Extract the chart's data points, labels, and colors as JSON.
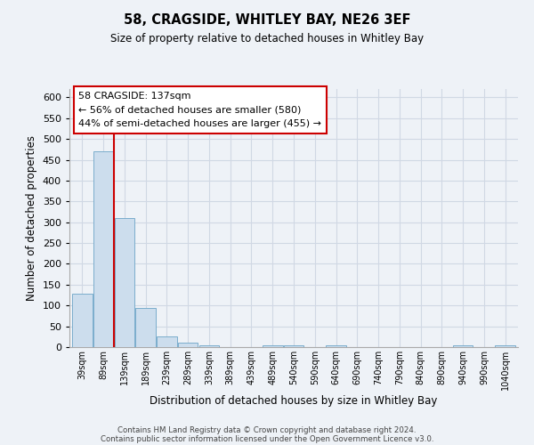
{
  "title": "58, CRAGSIDE, WHITLEY BAY, NE26 3EF",
  "subtitle": "Size of property relative to detached houses in Whitley Bay",
  "xlabel": "Distribution of detached houses by size in Whitley Bay",
  "ylabel": "Number of detached properties",
  "footer_line1": "Contains HM Land Registry data © Crown copyright and database right 2024.",
  "footer_line2": "Contains public sector information licensed under the Open Government Licence v3.0.",
  "bin_labels": [
    "39sqm",
    "89sqm",
    "139sqm",
    "189sqm",
    "239sqm",
    "289sqm",
    "339sqm",
    "389sqm",
    "439sqm",
    "489sqm",
    "540sqm",
    "590sqm",
    "640sqm",
    "690sqm",
    "740sqm",
    "790sqm",
    "840sqm",
    "890sqm",
    "940sqm",
    "990sqm",
    "1040sqm"
  ],
  "bar_values": [
    128,
    470,
    310,
    95,
    26,
    10,
    4,
    0,
    0,
    5,
    5,
    0,
    4,
    0,
    0,
    0,
    0,
    0,
    4,
    0,
    4
  ],
  "bar_color": "#ccdded",
  "bar_edgecolor": "#7aadcc",
  "ylim": [
    0,
    620
  ],
  "yticks": [
    0,
    50,
    100,
    150,
    200,
    250,
    300,
    350,
    400,
    450,
    500,
    550,
    600
  ],
  "vline_color": "#cc0000",
  "annotation_title": "58 CRAGSIDE: 137sqm",
  "annotation_line1": "← 56% of detached houses are smaller (580)",
  "annotation_line2": "44% of semi-detached houses are larger (455) →",
  "background_color": "#eef2f7",
  "grid_color": "#d0d8e4"
}
